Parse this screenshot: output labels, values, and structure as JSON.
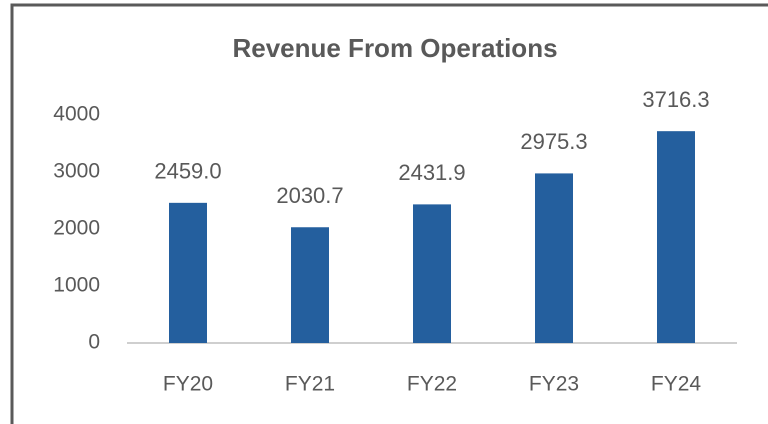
{
  "chart_data": {
    "type": "bar",
    "title": "Revenue From Operations",
    "categories": [
      "FY20",
      "FY21",
      "FY22",
      "FY23",
      "FY24"
    ],
    "values": [
      2459.0,
      2030.7,
      2431.9,
      2975.3,
      3716.3
    ],
    "value_labels": [
      "2459.0",
      "2030.7",
      "2431.9",
      "2975.3",
      "3716.3"
    ],
    "color": "#245f9e",
    "ylim": [
      0,
      4000
    ],
    "yticks": [
      0,
      1000,
      2000,
      3000,
      4000
    ],
    "grid": false
  }
}
